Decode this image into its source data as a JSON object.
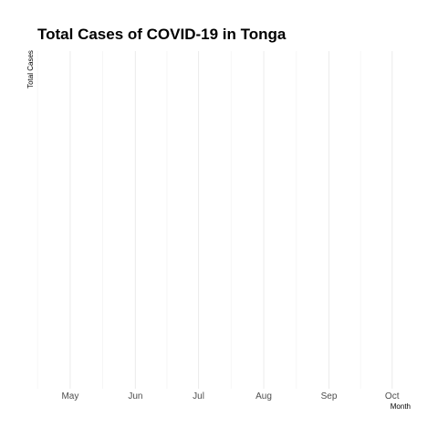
{
  "chart_data": {
    "type": "line",
    "title": "Total Cases of COVID-19 in Tonga",
    "xlabel": "Month",
    "ylabel": "Total Cases",
    "x_tick_labels": [
      "May",
      "Jun",
      "Jul",
      "Aug",
      "Sep",
      "Oct"
    ],
    "x_tick_values": [
      "2020-05-01",
      "2020-06-01",
      "2020-07-01",
      "2020-08-01",
      "2020-09-01",
      "2020-10-01"
    ],
    "xlim": [
      "2020-04-15",
      "2020-10-15"
    ],
    "series": [],
    "grid": true,
    "legend": "none"
  }
}
